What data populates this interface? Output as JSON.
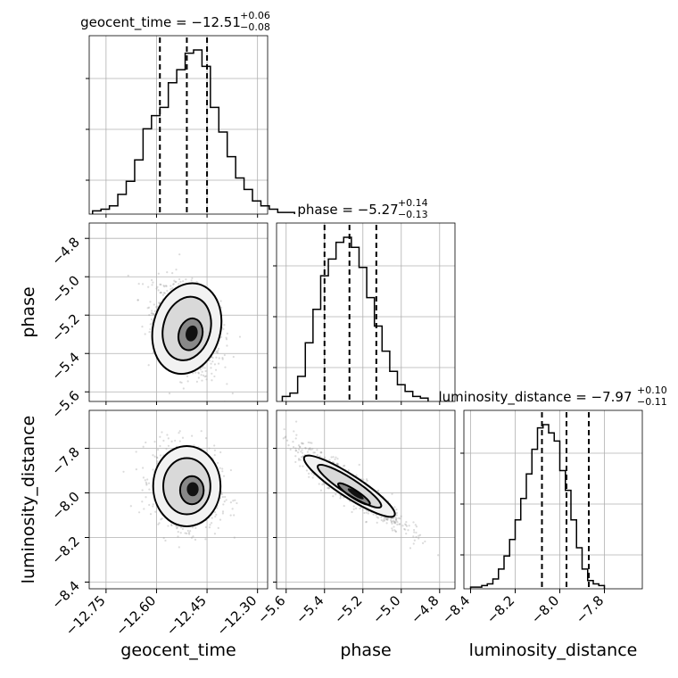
{
  "chart_data": {
    "type": "corner",
    "parameters": [
      "geocent_time",
      "phase",
      "luminosity_distance"
    ],
    "axis_labels": {
      "geocent_time": "geocent_time",
      "phase": "phase",
      "luminosity_distance": "luminosity_distance"
    },
    "ranges": {
      "geocent_time": [
        -12.8,
        -12.27
      ],
      "phase": [
        -5.65,
        -4.72
      ],
      "luminosity_distance": [
        -8.43,
        -7.63
      ]
    },
    "ticks": {
      "geocent_time": [
        -12.75,
        -12.6,
        -12.45,
        -12.3
      ],
      "phase": [
        -5.6,
        -5.4,
        -5.2,
        -5.0,
        -4.8
      ],
      "luminosity_distance": [
        -8.4,
        -8.2,
        -8.0,
        -7.8
      ]
    },
    "tick_labels": {
      "geocent_time": [
        "−12.75",
        "−12.60",
        "−12.45",
        "−12.30"
      ],
      "phase": [
        "−5.6",
        "−5.4",
        "−5.2",
        "−5.0",
        "−4.8"
      ],
      "phase_y": [
        "−4.8",
        "−5.0",
        "−5.2",
        "−5.4",
        "−5.6"
      ],
      "luminosity_distance": [
        "−8.4",
        "−8.2",
        "−8.0",
        "−7.8"
      ],
      "luminosity_distance_y": [
        "−7.8",
        "−8.0",
        "−8.2",
        "−8.4"
      ]
    },
    "titles": [
      {
        "name": "geocent_time",
        "text": "geocent_time = −12.51",
        "plus": "+0.06",
        "minus": "−0.08"
      },
      {
        "name": "phase",
        "text": "phase = −5.27",
        "plus": "+0.14",
        "minus": "−0.13"
      },
      {
        "name": "luminosity_distance",
        "text": "luminosity_distance = −7.97",
        "plus": "+0.10",
        "minus": "−0.11"
      }
    ],
    "quantiles": {
      "geocent_time": [
        -12.59,
        -12.51,
        -12.45
      ],
      "phase": [
        -5.4,
        -5.27,
        -5.13
      ],
      "luminosity_distance": [
        -8.08,
        -7.97,
        -7.87
      ]
    },
    "histograms": {
      "geocent_time": {
        "edges_start": -12.79,
        "bin_width": 0.025,
        "counts": [
          2,
          3,
          5,
          12,
          20,
          33,
          52,
          60,
          65,
          80,
          88,
          98,
          100,
          90,
          65,
          50,
          35,
          22,
          15,
          8,
          5,
          3,
          1,
          1
        ]
      },
      "phase": {
        "edges_start": -5.62,
        "bin_width": 0.04,
        "counts": [
          3,
          5,
          15,
          35,
          55,
          75,
          85,
          95,
          98,
          92,
          80,
          62,
          45,
          30,
          18,
          10,
          6,
          3,
          2
        ]
      },
      "luminosity_distance": {
        "edges_start": -8.4,
        "bin_width": 0.025,
        "counts": [
          1,
          1,
          2,
          3,
          6,
          12,
          20,
          30,
          42,
          55,
          70,
          85,
          98,
          100,
          95,
          90,
          72,
          60,
          42,
          25,
          12,
          5,
          3,
          2
        ]
      }
    },
    "grid": true
  }
}
